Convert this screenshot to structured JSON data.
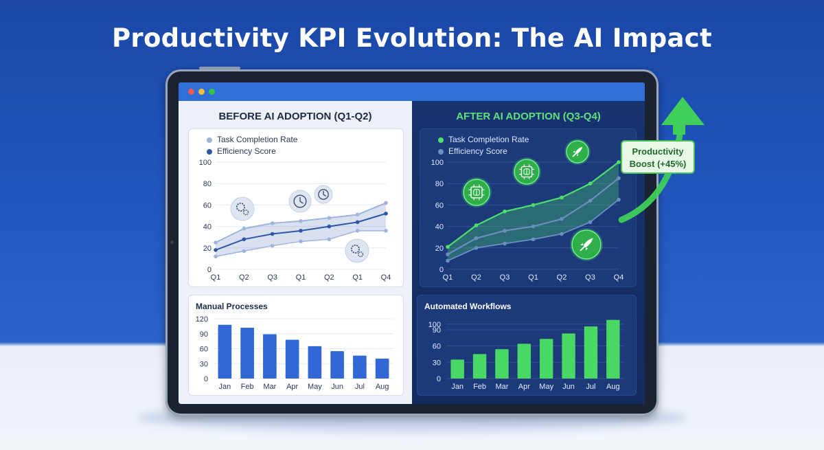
{
  "title": "Productivity KPI Evolution: The AI Impact",
  "colors": {
    "before_line1": "#9fb4dc",
    "before_line2": "#2d56a6",
    "before_bar": "#3268d6",
    "after_line1": "#4ee06a",
    "after_line2": "#6b8fbf",
    "after_bar": "#49d865"
  },
  "before": {
    "heading": "BEFORE AI ADOPTION (Q1-Q2)",
    "line_chart": {
      "legend": [
        "Task Completion Rate",
        "Efficiency Score"
      ],
      "icons": [
        "gears-icon",
        "clock-icon",
        "clock-icon",
        "gears-icon"
      ]
    },
    "bar_chart": {
      "title": "Manual Processes"
    }
  },
  "after": {
    "heading": "AFTER AI ADOPTION (Q3-Q4)",
    "line_chart": {
      "legend": [
        "Task Completion Rate",
        "Efficiency Score"
      ],
      "icons": [
        "ai-chip-icon",
        "ai-chip-icon",
        "rocket-icon",
        "rocket-icon"
      ]
    },
    "bar_chart": {
      "title": "Automated Workflows"
    }
  },
  "callout": "Productivity Boost (+45%)",
  "chart_data": [
    {
      "type": "line",
      "title": "BEFORE AI ADOPTION (Q1-Q2)",
      "categories": [
        "Q1",
        "Q2",
        "Q3",
        "Q1",
        "Q2",
        "Q1",
        "Q4"
      ],
      "yticks": [
        0,
        20,
        40,
        60,
        80,
        100
      ],
      "ylim": [
        0,
        100
      ],
      "legend_position": "top-left",
      "series": [
        {
          "name": "Task Completion Rate",
          "values": [
            25,
            38,
            43,
            45,
            48,
            51,
            62
          ]
        },
        {
          "name": "Efficiency Score",
          "values": [
            18,
            28,
            33,
            36,
            40,
            44,
            52
          ]
        },
        {
          "values": [
            12,
            17,
            22,
            26,
            28,
            36,
            36
          ]
        }
      ]
    },
    {
      "type": "bar",
      "title": "Manual Processes",
      "categories": [
        "Jan",
        "Feb",
        "Mar",
        "Apr",
        "May",
        "Jun",
        "Jul",
        "Aug"
      ],
      "values": [
        108,
        102,
        89,
        78,
        65,
        55,
        46,
        40
      ],
      "yticks": [
        0,
        30,
        60,
        90,
        120
      ],
      "ylim": [
        0,
        120
      ],
      "grid": true
    },
    {
      "type": "line",
      "title": "AFTER AI ADOPTION (Q3-Q4)",
      "categories": [
        "Q1",
        "Q2",
        "Q3",
        "Q1",
        "Q2",
        "Q3",
        "Q4"
      ],
      "yticks": [
        0,
        20,
        40,
        60,
        80,
        100
      ],
      "ylim": [
        0,
        100
      ],
      "legend_position": "top-left",
      "series": [
        {
          "name": "Task Completion Rate",
          "values": [
            21,
            41,
            54,
            60,
            67,
            80,
            100
          ]
        },
        {
          "name": "Efficiency Score",
          "values": [
            14,
            29,
            36,
            40,
            47,
            64,
            85
          ]
        },
        {
          "values": [
            8,
            20,
            24,
            28,
            33,
            44,
            65
          ]
        }
      ]
    },
    {
      "type": "bar",
      "title": "Automated Workflows",
      "categories": [
        "Jan",
        "Feb",
        "Mar",
        "Apr",
        "May",
        "Jun",
        "Jul",
        "Aug"
      ],
      "values": [
        35,
        45,
        54,
        64,
        73,
        83,
        96,
        108
      ],
      "yticks": [
        0,
        30,
        60,
        90,
        100
      ],
      "ylim": [
        0,
        110
      ],
      "grid": true
    }
  ]
}
